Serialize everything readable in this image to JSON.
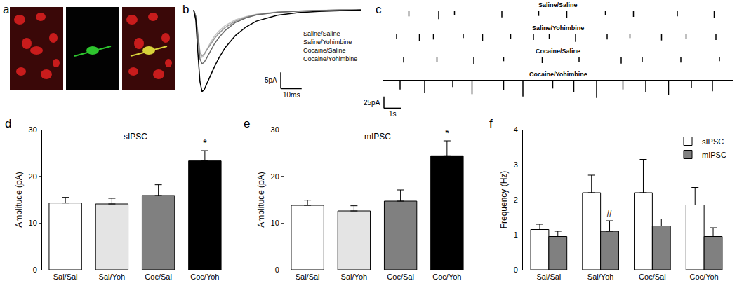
{
  "chart_data": [
    {
      "type": "image",
      "panel_label": "a"
    },
    {
      "type": "line",
      "panel_label": "b",
      "tick_labels": false,
      "xlim": [
        -2,
        82
      ],
      "ylim": [
        -27,
        2
      ],
      "x": [
        0,
        1,
        2,
        3,
        4,
        5,
        6,
        8,
        10,
        12,
        15,
        20,
        25,
        30,
        40,
        50,
        60,
        70,
        80
      ],
      "series": [
        {
          "name": "Saline/Saline",
          "color": "#c4c4c4",
          "values": [
            0,
            -2,
            -8,
            -13.5,
            -14.5,
            -13.8,
            -12.5,
            -10,
            -8,
            -6.5,
            -4.8,
            -3,
            -2,
            -1.3,
            -0.6,
            -0.3,
            -0.1,
            0,
            0
          ]
        },
        {
          "name": "Saline/Yohimbine",
          "color": "#9a9a9a",
          "values": [
            0,
            -2,
            -7,
            -13,
            -14,
            -13.5,
            -12.5,
            -10.5,
            -8.7,
            -7.2,
            -5.4,
            -3.4,
            -2.2,
            -1.4,
            -0.7,
            -0.3,
            -0.1,
            0,
            0
          ]
        },
        {
          "name": "Cocaine/Saline",
          "color": "#6a6a6a",
          "values": [
            0,
            -2,
            -8.5,
            -15,
            -16.5,
            -16,
            -15,
            -12.5,
            -10.3,
            -8.5,
            -6.3,
            -3.8,
            -2.4,
            -1.5,
            -0.7,
            -0.3,
            -0.1,
            0,
            0
          ]
        },
        {
          "name": "Cocaine/Yohimbine",
          "color": "#000000",
          "values": [
            0,
            -3,
            -13,
            -22,
            -25,
            -24.5,
            -23,
            -20,
            -17.3,
            -14.8,
            -11.6,
            -7.8,
            -5.2,
            -3.4,
            -1.6,
            -0.8,
            -0.4,
            -0.2,
            0
          ]
        }
      ],
      "scale_bar": {
        "x_length": 10,
        "x_label": "10ms",
        "y_length": 5,
        "y_label": "5pA"
      }
    },
    {
      "type": "events",
      "panel_label": "c",
      "tick_labels": false,
      "xlim": [
        0,
        20
      ],
      "ylim": [
        -40,
        5
      ],
      "series": [
        {
          "name": "Saline/Saline",
          "color": "#000000",
          "x": [
            1.5,
            3.2,
            4.1,
            6.8,
            8.9,
            10.5,
            12.7,
            14.3,
            16.8,
            18.9
          ],
          "values": [
            -12,
            -18,
            -10,
            -14,
            -11,
            -16,
            -9,
            -13,
            -12,
            -15
          ]
        },
        {
          "name": "Saline/Yohimbine",
          "color": "#000000",
          "x": [
            0.8,
            2.1,
            2.9,
            4.6,
            5.7,
            7.3,
            8.6,
            9.5,
            11.0,
            12.8,
            14.1,
            15.9,
            17.3,
            19.0
          ],
          "values": [
            -10,
            -16,
            -12,
            -9,
            -15,
            -11,
            -13,
            -10,
            -17,
            -12,
            -9,
            -14,
            -11,
            -13
          ]
        },
        {
          "name": "Cocaine/Saline",
          "color": "#000000",
          "x": [
            1.2,
            3.1,
            5.2,
            6.9,
            9.1,
            11.2,
            13.6,
            14.8,
            17.0,
            19.2
          ],
          "values": [
            -12,
            -10,
            -15,
            -9,
            -13,
            -11,
            -14,
            -10,
            -12,
            -9
          ]
        },
        {
          "name": "Cocaine/Yohimbine",
          "color": "#000000",
          "x": [
            1.0,
            2.4,
            4.0,
            5.1,
            6.9,
            8.0,
            9.7,
            10.9,
            12.2,
            13.7,
            15.0,
            16.3,
            17.6,
            18.8
          ],
          "values": [
            -20,
            -28,
            -15,
            -30,
            -22,
            -35,
            -18,
            -26,
            -38,
            -20,
            -25,
            -32,
            -17,
            -24
          ]
        }
      ],
      "scale_bar": {
        "x_length": 1,
        "x_label": "1s",
        "y_length": 25,
        "y_label": "25pA"
      }
    },
    {
      "type": "bar",
      "panel_label": "d",
      "title": "sIPSC",
      "y_label": "Amplitude (pA)",
      "categories": [
        "Sal/Sal",
        "Sal/Yoh",
        "Coc/Sal",
        "Coc/Yoh"
      ],
      "values": [
        14.3,
        14.1,
        15.9,
        23.3
      ],
      "errors": [
        1.2,
        1.2,
        2.3,
        2.2
      ],
      "colors": [
        "#ffffff",
        "#e4e4e4",
        "#808080",
        "#000000"
      ],
      "ylim": [
        0,
        30
      ],
      "yticks": [
        0,
        10,
        20,
        30
      ],
      "annotations": [
        {
          "category": "Coc/Yoh",
          "text": "*"
        }
      ]
    },
    {
      "type": "bar",
      "panel_label": "e",
      "title": "mIPSC",
      "y_label": "Amplitude (pA)",
      "categories": [
        "Sal/Sal",
        "Sal/Yoh",
        "Coc/Sal",
        "Coc/Yoh"
      ],
      "values": [
        13.8,
        12.6,
        14.7,
        24.4
      ],
      "errors": [
        1.1,
        1.1,
        2.4,
        3.2
      ],
      "colors": [
        "#ffffff",
        "#e4e4e4",
        "#808080",
        "#000000"
      ],
      "ylim": [
        0,
        30
      ],
      "yticks": [
        0,
        10,
        20,
        30
      ],
      "annotations": [
        {
          "category": "Coc/Yoh",
          "text": "*"
        }
      ]
    },
    {
      "type": "bar",
      "panel_label": "f",
      "y_label": "Frequency (Hz)",
      "categories": [
        "Sal/Sal",
        "Sal/Yoh",
        "Coc/Sal",
        "Coc/Yoh"
      ],
      "series": [
        {
          "name": "sIPSC",
          "color": "#ffffff",
          "values": [
            1.15,
            2.2,
            2.2,
            1.85
          ],
          "errors": [
            0.15,
            0.5,
            0.95,
            0.5
          ]
        },
        {
          "name": "mIPSC",
          "color": "#808080",
          "values": [
            0.95,
            1.1,
            1.25,
            0.95
          ],
          "errors": [
            0.15,
            0.3,
            0.2,
            0.25
          ]
        }
      ],
      "ylim": [
        0,
        4
      ],
      "yticks": [
        0,
        1,
        2,
        3,
        4
      ],
      "legend": "top right",
      "annotations": [
        {
          "category": "Sal/Yoh",
          "series": "mIPSC",
          "text": "#"
        }
      ]
    }
  ]
}
